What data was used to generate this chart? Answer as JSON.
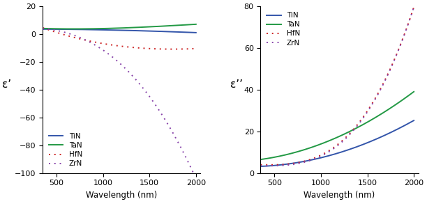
{
  "color_TiN": "#3355aa",
  "color_TaN": "#229944",
  "color_HfN": "#cc2222",
  "color_ZrN": "#8844aa",
  "left_ylim": [
    -100,
    20
  ],
  "left_yticks": [
    -100,
    -80,
    -60,
    -40,
    -20,
    0,
    20
  ],
  "right_ylim": [
    0,
    80
  ],
  "right_yticks": [
    0,
    20,
    40,
    60,
    80
  ],
  "xlim": [
    350,
    2050
  ],
  "xticks": [
    500,
    1000,
    1500,
    2000
  ],
  "left_ylabel": "ε’",
  "right_ylabel": "ε’’",
  "xlabel": "Wavelength (nm)"
}
